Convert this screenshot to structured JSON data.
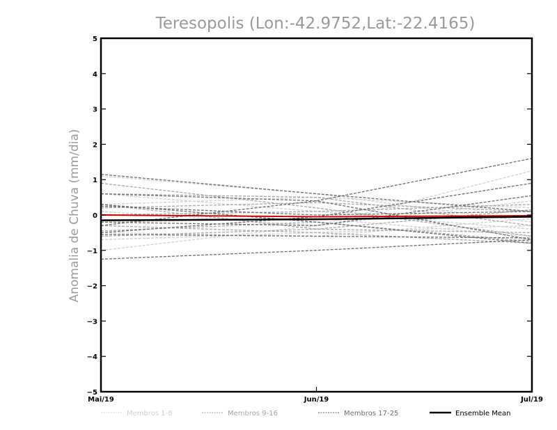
{
  "chart_data": {
    "type": "line",
    "title": "Teresopolis (Lon:-42.9752,Lat:-22.4165)",
    "xlabel": "",
    "ylabel": "Anomalia de Chuva (mm/dia)",
    "categories": [
      "Mai/19",
      "Jun/19",
      "Jul/19"
    ],
    "ylim": [
      -5,
      5
    ],
    "yticks": [
      -5,
      -4,
      -3,
      -2,
      -1,
      0,
      1,
      2,
      3,
      4,
      5
    ],
    "grid": false,
    "legend_position": "bottom",
    "legend": [
      {
        "label": "Membros 1-8",
        "color": "#d0d0d0",
        "style": "dashed"
      },
      {
        "label": "Membros 9-16",
        "color": "#a8a8a8",
        "style": "dashed"
      },
      {
        "label": "Membros 17-25",
        "color": "#6e6e6e",
        "style": "dashed"
      },
      {
        "label": "Ensemble Mean",
        "color": "#000000",
        "style": "solid"
      }
    ],
    "series": [
      {
        "group": 0,
        "values": [
          -1.0,
          -0.3,
          1.25
        ]
      },
      {
        "group": 0,
        "values": [
          0.6,
          0.1,
          -0.4
        ]
      },
      {
        "group": 0,
        "values": [
          -0.7,
          -0.5,
          -0.3
        ]
      },
      {
        "group": 0,
        "values": [
          0.3,
          0.5,
          0.2
        ]
      },
      {
        "group": 0,
        "values": [
          -0.2,
          -0.1,
          -0.6
        ]
      },
      {
        "group": 0,
        "values": [
          1.1,
          0.6,
          -0.2
        ]
      },
      {
        "group": 0,
        "values": [
          -0.5,
          -0.6,
          -0.1
        ]
      },
      {
        "group": 0,
        "values": [
          0.1,
          -0.3,
          0.4
        ]
      },
      {
        "group": 1,
        "values": [
          0.2,
          0.35,
          0.1
        ]
      },
      {
        "group": 1,
        "values": [
          -0.6,
          -0.4,
          -0.5
        ]
      },
      {
        "group": 1,
        "values": [
          0.6,
          0.5,
          -0.3
        ]
      },
      {
        "group": 1,
        "values": [
          -0.3,
          -0.5,
          -0.8
        ]
      },
      {
        "group": 1,
        "values": [
          0.0,
          0.1,
          0.3
        ]
      },
      {
        "group": 1,
        "values": [
          0.9,
          0.2,
          -0.6
        ]
      },
      {
        "group": 1,
        "values": [
          -0.45,
          -0.2,
          -0.75
        ]
      },
      {
        "group": 1,
        "values": [
          0.3,
          -0.4,
          0.15
        ]
      },
      {
        "group": 2,
        "values": [
          -1.25,
          -1.0,
          -0.7
        ]
      },
      {
        "group": 2,
        "values": [
          -0.3,
          0.4,
          1.6
        ]
      },
      {
        "group": 2,
        "values": [
          1.15,
          0.6,
          0.1
        ]
      },
      {
        "group": 2,
        "values": [
          -0.5,
          -0.05,
          0.9
        ]
      },
      {
        "group": 2,
        "values": [
          0.3,
          -0.2,
          -0.8
        ]
      },
      {
        "group": 2,
        "values": [
          -0.2,
          -0.3,
          0.55
        ]
      },
      {
        "group": 2,
        "values": [
          0.6,
          0.4,
          -0.7
        ]
      },
      {
        "group": 2,
        "values": [
          -0.55,
          -0.6,
          -0.65
        ]
      },
      {
        "group": 2,
        "values": [
          0.25,
          0.0,
          0.1
        ]
      }
    ],
    "mean": {
      "color": "#000000",
      "values": [
        -0.15,
        -0.12,
        -0.05
      ]
    },
    "reference": {
      "color": "#cc0000",
      "values": [
        0.0,
        -0.05,
        -0.02
      ]
    }
  }
}
